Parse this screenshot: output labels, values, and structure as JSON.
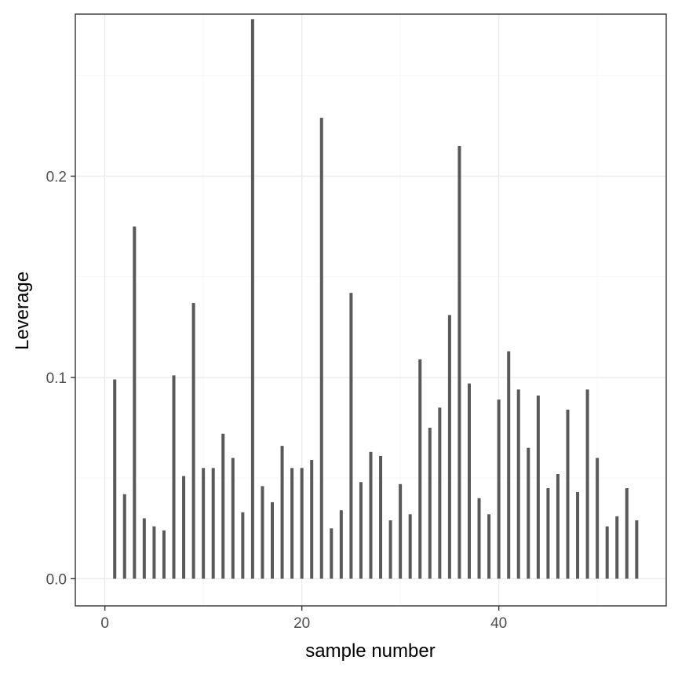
{
  "chart_data": {
    "type": "bar",
    "title": "",
    "xlabel": "sample number",
    "ylabel": "Leverage",
    "xlim": [
      -3,
      57
    ],
    "ylim": [
      -0.0135,
      0.2805
    ],
    "x_ticks": [
      0,
      20,
      40
    ],
    "y_ticks": [
      0.0,
      0.1,
      0.2
    ],
    "x_tick_labels": [
      "0",
      "20",
      "40"
    ],
    "y_tick_labels": [
      "0.0",
      "0.1",
      "0.2"
    ],
    "grid": true,
    "legend": "none",
    "bar_color": "#595959",
    "panel_border_color": "#333333",
    "major_grid_color": "#ebebeb",
    "minor_grid_color": "#f5f5f5",
    "x": [
      1,
      2,
      3,
      4,
      5,
      6,
      7,
      8,
      9,
      10,
      11,
      12,
      13,
      14,
      15,
      16,
      17,
      18,
      19,
      20,
      21,
      22,
      23,
      24,
      25,
      26,
      27,
      28,
      29,
      30,
      31,
      32,
      33,
      34,
      35,
      36,
      37,
      38,
      39,
      40,
      41,
      42,
      43,
      44,
      45,
      46,
      47,
      48,
      49,
      50,
      51,
      52,
      53,
      54
    ],
    "values": [
      0.099,
      0.042,
      0.175,
      0.03,
      0.026,
      0.024,
      0.101,
      0.051,
      0.137,
      0.055,
      0.055,
      0.072,
      0.06,
      0.033,
      0.278,
      0.046,
      0.038,
      0.066,
      0.055,
      0.055,
      0.059,
      0.229,
      0.025,
      0.034,
      0.142,
      0.048,
      0.063,
      0.061,
      0.029,
      0.047,
      0.032,
      0.109,
      0.075,
      0.085,
      0.131,
      0.215,
      0.097,
      0.04,
      0.032,
      0.089,
      0.113,
      0.094,
      0.065,
      0.091,
      0.045,
      0.052,
      0.084,
      0.043,
      0.094,
      0.06,
      0.026,
      0.031,
      0.045,
      0.029
    ]
  }
}
